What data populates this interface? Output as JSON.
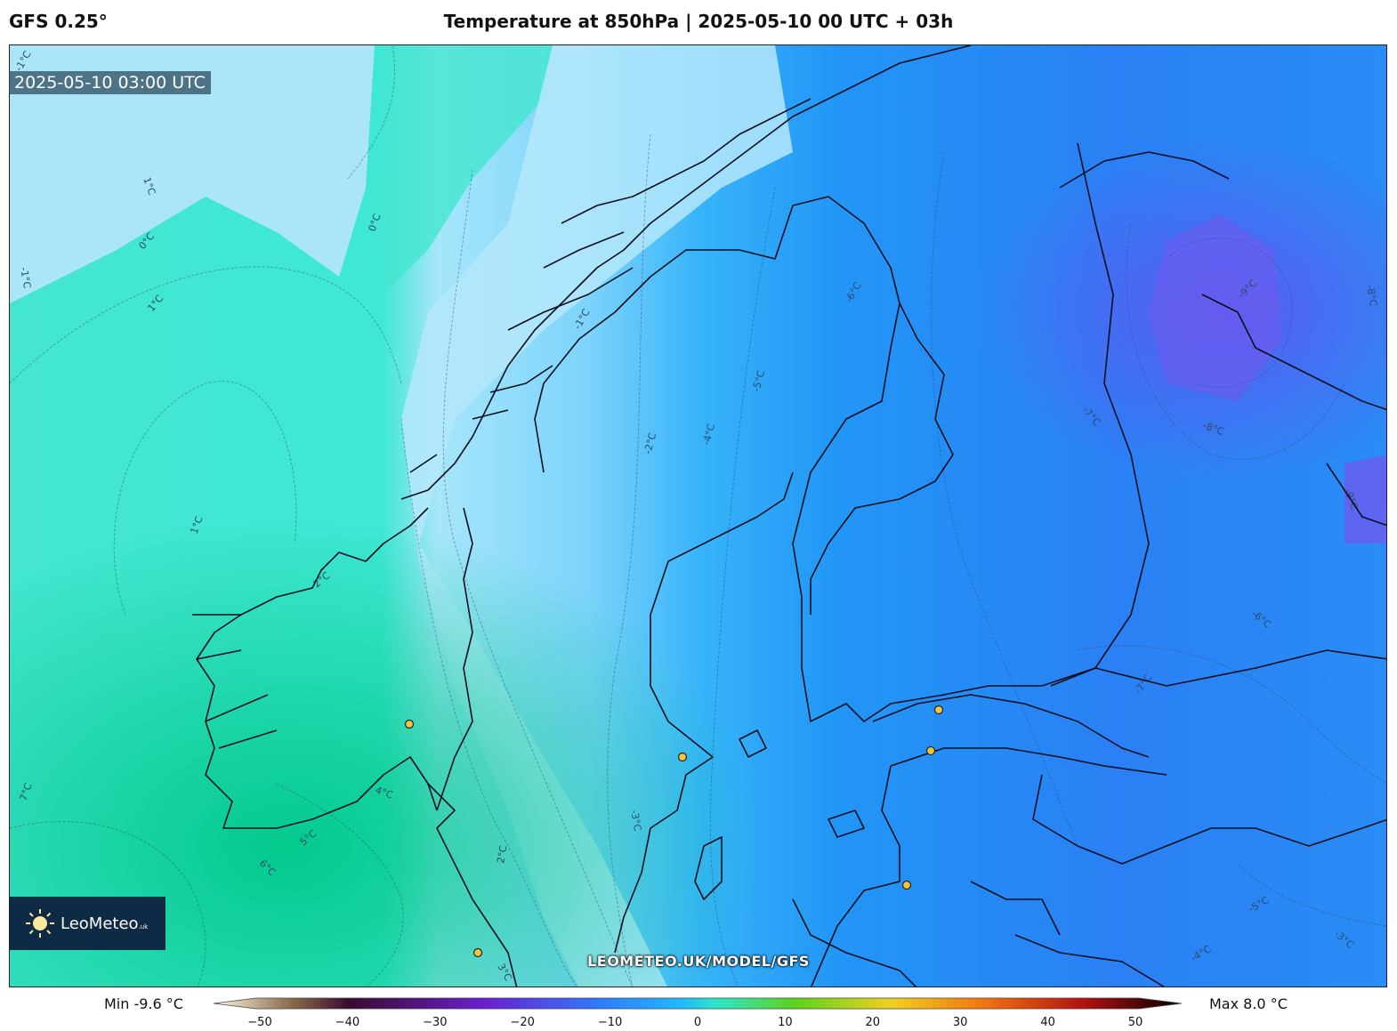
{
  "header": {
    "model": "GFS 0.25°",
    "title": "Temperature at 850hPa | 2025-05-10 00 UTC + 03h"
  },
  "map": {
    "timestamp": "2025-05-10 03:00 UTC",
    "source_text": "LEOMETEO.UK/MODEL/GFS",
    "logo_text": "LeoMeteo",
    "logo_tld": ".uk",
    "contour_labels": [
      "-1°C",
      "0°C",
      "1°C",
      "-1°C",
      "0°C",
      "1°C",
      "1°C",
      "2°C",
      "2°C",
      "3°C",
      "4°C",
      "5°C",
      "6°C",
      "7°C",
      "-1°C",
      "-2°C",
      "-3°C",
      "-4°C",
      "-5°C",
      "-6°C",
      "-7°C",
      "-8°C",
      "-9°C",
      "-9°C",
      "-8°C",
      "-7°C",
      "-6°C",
      "-5°C",
      "-4°C",
      "-3°C"
    ]
  },
  "colorbar": {
    "min_label": "Min -9.6 °C",
    "max_label": "Max 8.0 °C",
    "ticks": [
      "−50",
      "−40",
      "−30",
      "−20",
      "−10",
      "0",
      "10",
      "20",
      "30",
      "40",
      "50"
    ],
    "colors": [
      "#fff8e6",
      "#8b6b4a",
      "#3a0a2e",
      "#6a1fd0",
      "#2f7bff",
      "#1fb6ff",
      "#2ee6c8",
      "#5cd21e",
      "#f0d020",
      "#f07010",
      "#b01010",
      "#000000"
    ]
  }
}
